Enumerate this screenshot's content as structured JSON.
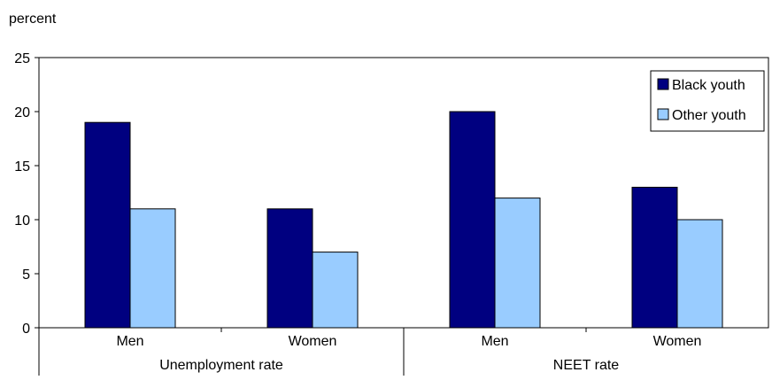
{
  "chart_data": {
    "type": "bar",
    "ylabel": "percent",
    "ylim": [
      0,
      25
    ],
    "yticks": [
      0,
      5,
      10,
      15,
      20,
      25
    ],
    "groups": [
      {
        "label": "Unemployment rate",
        "categories": [
          "Men",
          "Women"
        ]
      },
      {
        "label": "NEET rate",
        "categories": [
          "Men",
          "Women"
        ]
      }
    ],
    "series": [
      {
        "name": "Black youth",
        "color": "#000080",
        "values": [
          19,
          11,
          20,
          13
        ]
      },
      {
        "name": "Other youth",
        "color": "#99ccff",
        "values": [
          11,
          7,
          12,
          10
        ]
      }
    ],
    "legend_position": "top-right",
    "grid": false
  }
}
